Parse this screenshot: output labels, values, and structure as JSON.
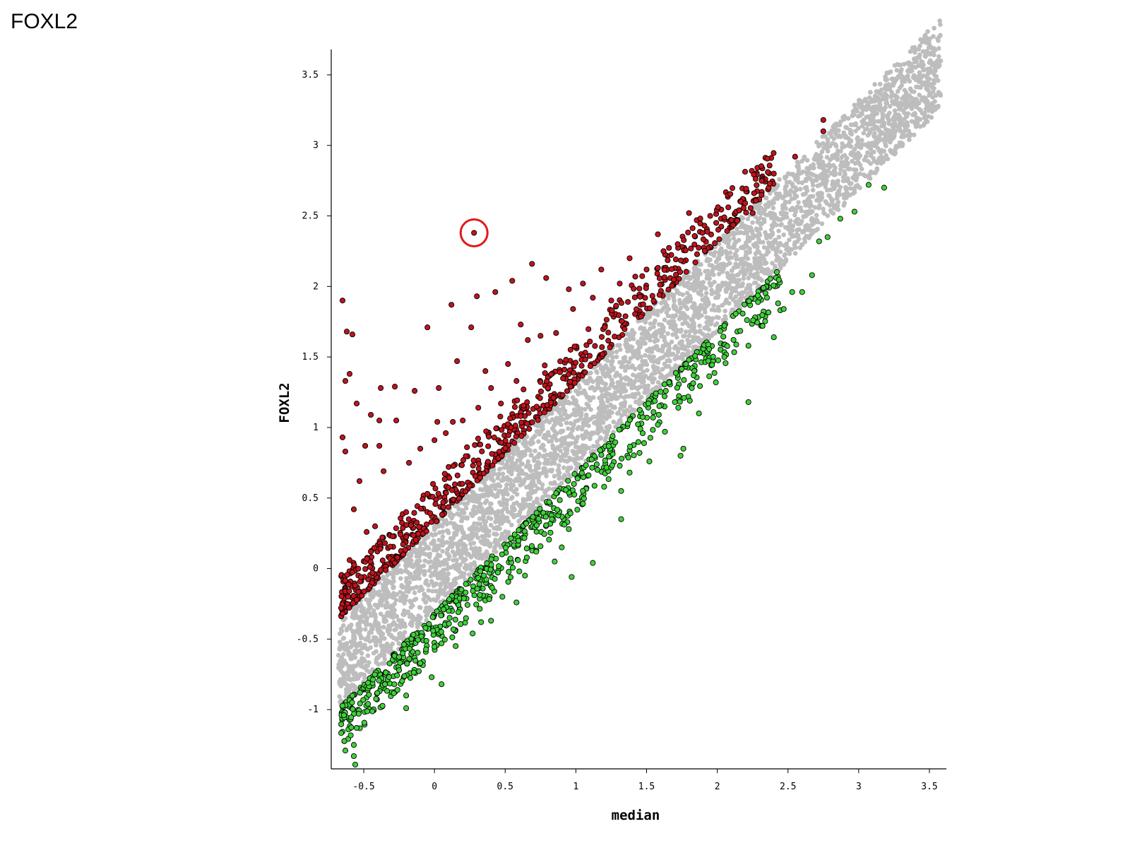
{
  "page": {
    "title": "FOXL2"
  },
  "chart_data": {
    "type": "scatter",
    "title": "",
    "xlabel": "median",
    "ylabel": "FOXL2",
    "xlim": [
      -0.73,
      3.62
    ],
    "ylim": [
      -1.42,
      3.68
    ],
    "xticks": [
      -0.5,
      0,
      0.5,
      1,
      1.5,
      2,
      2.5,
      3,
      3.5
    ],
    "yticks": [
      -1,
      -0.5,
      0,
      0.5,
      1,
      1.5,
      2,
      2.5,
      3,
      3.5
    ],
    "grid": false,
    "colors": {
      "background": "#bdbdbd",
      "up": "#c0141c",
      "down": "#3fd13a",
      "outline": "#000000",
      "highlight": "#e01b1b"
    },
    "series": [
      {
        "color": "#bdbdbd",
        "role": "not-significant",
        "band": {
          "x_start": -0.68,
          "x_end": 3.58,
          "lower_offset": -0.32,
          "upper_offset": 0.32
        },
        "points": [
          [
            3.58,
            3.6
          ],
          [
            3.53,
            3.58
          ],
          [
            3.45,
            3.43
          ],
          [
            3.25,
            3.2
          ],
          [
            3.2,
            3.3
          ],
          [
            3.1,
            3.15
          ],
          [
            2.95,
            3.08
          ],
          [
            2.85,
            2.9
          ],
          [
            2.75,
            2.75
          ],
          [
            3.3,
            3.28
          ]
        ]
      },
      {
        "color": "#c0141c",
        "role": "up",
        "points": [
          [
            0.28,
            2.38
          ],
          [
            2.75,
            3.18
          ],
          [
            2.75,
            3.1
          ],
          [
            2.55,
            2.92
          ],
          [
            2.4,
            2.8
          ],
          [
            0.69,
            2.16
          ],
          [
            0.79,
            2.06
          ],
          [
            0.55,
            2.04
          ],
          [
            0.3,
            1.93
          ],
          [
            0.43,
            1.96
          ],
          [
            0.12,
            1.87
          ],
          [
            -0.65,
            1.9
          ],
          [
            -0.62,
            1.68
          ],
          [
            -0.58,
            1.66
          ],
          [
            -0.05,
            1.71
          ],
          [
            0.26,
            1.71
          ],
          [
            0.16,
            1.47
          ],
          [
            -0.63,
            1.33
          ],
          [
            -0.6,
            1.38
          ],
          [
            -0.38,
            1.28
          ],
          [
            -0.28,
            1.29
          ],
          [
            -0.14,
            1.26
          ],
          [
            0.03,
            1.28
          ],
          [
            -0.55,
            1.17
          ],
          [
            -0.45,
            1.09
          ],
          [
            -0.39,
            1.05
          ],
          [
            -0.27,
            1.05
          ],
          [
            0.02,
            1.04
          ],
          [
            -0.65,
            0.93
          ],
          [
            -0.63,
            0.83
          ],
          [
            -0.49,
            0.87
          ],
          [
            -0.39,
            0.87
          ],
          [
            1.8,
            2.52
          ],
          [
            1.95,
            2.5
          ],
          [
            2.05,
            2.49
          ],
          [
            2.1,
            2.47
          ],
          [
            2.25,
            2.52
          ],
          [
            1.58,
            2.37
          ],
          [
            1.38,
            2.2
          ],
          [
            1.18,
            2.12
          ],
          [
            1.05,
            2.02
          ],
          [
            0.95,
            1.98
          ],
          [
            0.86,
            1.67
          ],
          [
            0.75,
            1.65
          ],
          [
            0.61,
            1.73
          ],
          [
            0.93,
            1.48
          ],
          [
            0.78,
            1.44
          ],
          [
            0.58,
            1.33
          ],
          [
            0.63,
            1.27
          ],
          [
            0.4,
            1.28
          ],
          [
            0.47,
            1.17
          ],
          [
            0.31,
            1.14
          ],
          [
            0.13,
            1.04
          ],
          [
            0.08,
            0.96
          ],
          [
            -0.18,
            0.75
          ],
          [
            -0.36,
            0.69
          ],
          [
            -0.53,
            0.62
          ],
          [
            -0.57,
            0.42
          ],
          [
            -0.48,
            0.26
          ],
          [
            -0.35,
            0.18
          ],
          [
            -0.22,
            0.1
          ],
          [
            -0.6,
            0.06
          ],
          [
            -0.52,
            -0.06
          ],
          [
            -0.38,
            -0.01
          ],
          [
            -0.28,
            0.04
          ],
          [
            -0.66,
            -0.28
          ],
          [
            -0.61,
            -0.2
          ],
          [
            -0.56,
            -0.12
          ],
          [
            1.25,
            1.9
          ],
          [
            1.42,
            2.07
          ],
          [
            1.62,
            2.25
          ],
          [
            1.72,
            2.3
          ],
          [
            0.52,
            1.45
          ],
          [
            0.36,
            1.4
          ],
          [
            0.66,
            1.62
          ],
          [
            0.98,
            1.84
          ],
          [
            1.12,
            1.92
          ],
          [
            1.31,
            2.02
          ],
          [
            1.5,
            2.12
          ],
          [
            0.2,
            1.05
          ],
          [
            -0.1,
            0.85
          ],
          [
            0.0,
            0.91
          ],
          [
            0.23,
            0.86
          ],
          [
            0.1,
            0.72
          ],
          [
            -0.05,
            0.53
          ],
          [
            -0.2,
            0.4
          ],
          [
            -0.42,
            0.3
          ],
          [
            -0.45,
            0.12
          ]
        ],
        "band": {
          "x_start": -0.66,
          "x_end": 2.4,
          "lower_offset": 0.32,
          "upper_offset": 0.62
        }
      },
      {
        "color": "#3fd13a",
        "role": "down",
        "points": [
          [
            3.18,
            2.7
          ],
          [
            3.07,
            2.72
          ],
          [
            2.97,
            2.53
          ],
          [
            2.87,
            2.48
          ],
          [
            2.78,
            2.35
          ],
          [
            2.72,
            2.32
          ],
          [
            2.67,
            2.08
          ],
          [
            2.6,
            1.96
          ],
          [
            2.53,
            1.96
          ],
          [
            2.47,
            1.84
          ],
          [
            2.43,
            1.88
          ],
          [
            2.4,
            1.64
          ],
          [
            2.22,
            1.18
          ],
          [
            1.99,
            1.32
          ],
          [
            1.87,
            1.1
          ],
          [
            1.76,
            0.85
          ],
          [
            1.74,
            0.8
          ],
          [
            1.63,
            0.97
          ],
          [
            1.38,
            0.68
          ],
          [
            1.32,
            0.35
          ],
          [
            1.32,
            0.55
          ],
          [
            1.12,
            0.04
          ],
          [
            0.97,
            -0.06
          ],
          [
            0.85,
            0.05
          ],
          [
            0.83,
            0.35
          ],
          [
            0.64,
            -0.05
          ],
          [
            0.58,
            -0.24
          ],
          [
            0.4,
            -0.37
          ],
          [
            0.27,
            -0.46
          ],
          [
            0.05,
            -0.82
          ],
          [
            -0.02,
            -0.77
          ],
          [
            -0.1,
            -0.67
          ],
          [
            -0.2,
            -0.9
          ],
          [
            -0.2,
            -0.99
          ],
          [
            -0.55,
            -1.13
          ],
          [
            -0.57,
            -1.25
          ],
          [
            -0.57,
            -1.33
          ],
          [
            -0.63,
            -1.29
          ],
          [
            -0.56,
            -1.39
          ],
          [
            -0.64,
            -1.04
          ],
          [
            -0.47,
            -0.96
          ],
          [
            -0.35,
            -0.82
          ],
          [
            -0.25,
            -0.72
          ],
          [
            0.15,
            -0.55
          ],
          [
            0.33,
            -0.38
          ],
          [
            0.48,
            -0.2
          ],
          [
            0.72,
            0.12
          ],
          [
            0.95,
            0.28
          ],
          [
            1.05,
            0.46
          ],
          [
            1.2,
            0.58
          ],
          [
            1.45,
            0.82
          ],
          [
            1.58,
            1.02
          ],
          [
            1.7,
            1.18
          ],
          [
            1.82,
            1.28
          ],
          [
            2.05,
            1.5
          ],
          [
            2.22,
            1.58
          ],
          [
            2.32,
            1.72
          ],
          [
            1.52,
            0.76
          ],
          [
            0.9,
            0.15
          ],
          [
            0.6,
            -0.02
          ]
        ],
        "band": {
          "x_start": -0.66,
          "x_end": 2.45,
          "lower_offset": -0.62,
          "upper_offset": -0.32
        }
      }
    ],
    "annotations": [
      {
        "type": "circle",
        "x": 0.28,
        "y": 2.38,
        "color": "#e01b1b"
      }
    ]
  }
}
